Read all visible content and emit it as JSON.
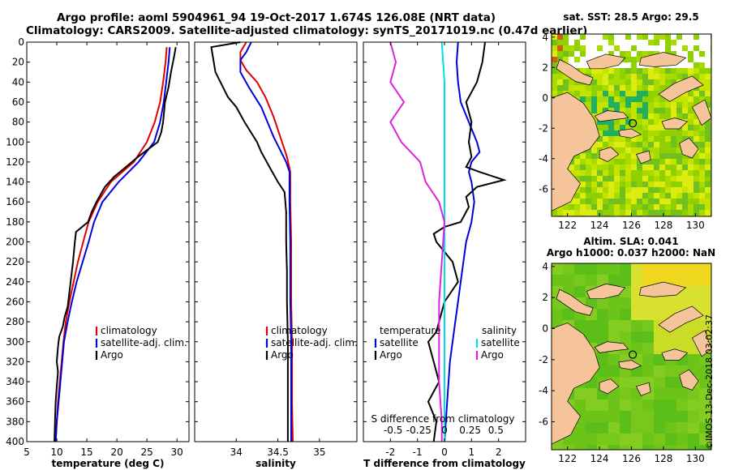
{
  "header": {
    "line1": "Argo profile: aoml 5904961_94 19-Oct-2017 1.674S 126.08E (NRT data)",
    "line2": "Climatology: CARS2009. Satellite-adjusted climatology: synTS_20171019.nc (0.47d earlier)"
  },
  "colors": {
    "climatology": "#e00000",
    "satellite": "#0000dd",
    "argo": "#000000",
    "satellite_salinity": "#00e0e8",
    "argo_salinity_diff": "#e020e0",
    "land": "#f5c49a"
  },
  "chart_data": [
    {
      "id": "temperature",
      "type": "line",
      "xlabel": "temperature (deg C)",
      "ylabel": "",
      "xlim": [
        5,
        32
      ],
      "ylim": [
        400,
        0
      ],
      "xticks": [
        5,
        10,
        15,
        20,
        25,
        30
      ],
      "yticks": [
        0,
        20,
        40,
        60,
        80,
        100,
        120,
        140,
        160,
        180,
        200,
        220,
        240,
        260,
        280,
        300,
        320,
        340,
        360,
        380,
        400
      ],
      "legend": [
        "climatology",
        "satellite-adj. clim.",
        "Argo"
      ],
      "series": [
        {
          "name": "climatology",
          "points": [
            [
              28.3,
              5
            ],
            [
              28.1,
              20
            ],
            [
              27.7,
              40
            ],
            [
              27.2,
              60
            ],
            [
              26.3,
              80
            ],
            [
              25,
              100
            ],
            [
              22.8,
              120
            ],
            [
              19,
              140
            ],
            [
              16.8,
              160
            ],
            [
              15.3,
              180
            ],
            [
              14.4,
              200
            ],
            [
              13.5,
              220
            ],
            [
              12.8,
              240
            ],
            [
              12.1,
              260
            ],
            [
              11.5,
              280
            ],
            [
              11.1,
              300
            ],
            [
              10.8,
              320
            ],
            [
              10.5,
              340
            ],
            [
              10.2,
              360
            ],
            [
              10.0,
              380
            ],
            [
              9.8,
              400
            ]
          ]
        },
        {
          "name": "satellite-adj. clim.",
          "points": [
            [
              28.8,
              5
            ],
            [
              28.6,
              20
            ],
            [
              28.2,
              40
            ],
            [
              27.8,
              60
            ],
            [
              27.2,
              80
            ],
            [
              26.2,
              100
            ],
            [
              23.6,
              120
            ],
            [
              20.3,
              140
            ],
            [
              17.6,
              160
            ],
            [
              16.2,
              180
            ],
            [
              15.3,
              200
            ],
            [
              14.3,
              220
            ],
            [
              13.3,
              240
            ],
            [
              12.5,
              260
            ],
            [
              11.8,
              280
            ],
            [
              11.2,
              300
            ],
            [
              10.9,
              320
            ],
            [
              10.6,
              340
            ],
            [
              10.3,
              360
            ],
            [
              10.0,
              380
            ],
            [
              9.8,
              400
            ]
          ]
        },
        {
          "name": "Argo",
          "points": [
            [
              29.8,
              5
            ],
            [
              29.5,
              15
            ],
            [
              29.0,
              30
            ],
            [
              28.6,
              45
            ],
            [
              28.0,
              60
            ],
            [
              27.7,
              80
            ],
            [
              27.4,
              90
            ],
            [
              26.8,
              100
            ],
            [
              23.5,
              115
            ],
            [
              21.5,
              125
            ],
            [
              19.5,
              135
            ],
            [
              18,
              145
            ],
            [
              16.6,
              160
            ],
            [
              15.8,
              170
            ],
            [
              15.2,
              180
            ],
            [
              13.2,
              190
            ],
            [
              13.0,
              200
            ],
            [
              12.7,
              220
            ],
            [
              12.3,
              240
            ],
            [
              12.0,
              255
            ],
            [
              11.8,
              265
            ],
            [
              11.3,
              275
            ],
            [
              11.0,
              285
            ],
            [
              10.4,
              295
            ],
            [
              10.2,
              305
            ],
            [
              10.0,
              320
            ],
            [
              10.2,
              330
            ],
            [
              10.0,
              345
            ],
            [
              9.8,
              360
            ],
            [
              9.7,
              380
            ],
            [
              9.6,
              400
            ]
          ]
        }
      ]
    },
    {
      "id": "salinity",
      "type": "line",
      "xlabel": "salinity",
      "xlim": [
        33.5,
        35.45
      ],
      "ylim": [
        400,
        0
      ],
      "xticks": [
        34,
        34.5,
        35
      ],
      "legend": [
        "climatology",
        "satellite-adj. clim.",
        "Argo"
      ],
      "series": [
        {
          "name": "climatology",
          "points": [
            [
              34.12,
              0
            ],
            [
              34.05,
              10
            ],
            [
              34.05,
              18
            ],
            [
              34.12,
              28
            ],
            [
              34.25,
              40
            ],
            [
              34.35,
              55
            ],
            [
              34.45,
              75
            ],
            [
              34.53,
              95
            ],
            [
              34.61,
              115
            ],
            [
              34.65,
              130
            ],
            [
              34.65,
              160
            ],
            [
              34.66,
              200
            ],
            [
              34.66,
              260
            ],
            [
              34.67,
              300
            ],
            [
              34.67,
              360
            ],
            [
              34.68,
              400
            ]
          ]
        },
        {
          "name": "satellite-adj. clim.",
          "points": [
            [
              34.18,
              0
            ],
            [
              34.12,
              10
            ],
            [
              34.05,
              18
            ],
            [
              34.05,
              30
            ],
            [
              34.15,
              45
            ],
            [
              34.3,
              65
            ],
            [
              34.45,
              95
            ],
            [
              34.6,
              120
            ],
            [
              34.64,
              130
            ],
            [
              34.64,
              160
            ],
            [
              34.65,
              200
            ],
            [
              34.65,
              260
            ],
            [
              34.66,
              300
            ],
            [
              34.66,
              360
            ],
            [
              34.66,
              400
            ]
          ]
        },
        {
          "name": "Argo",
          "points": [
            [
              34.05,
              0
            ],
            [
              33.7,
              5
            ],
            [
              33.75,
              30
            ],
            [
              33.9,
              55
            ],
            [
              34.0,
              65
            ],
            [
              34.1,
              80
            ],
            [
              34.25,
              100
            ],
            [
              34.3,
              110
            ],
            [
              34.4,
              125
            ],
            [
              34.5,
              140
            ],
            [
              34.58,
              150
            ],
            [
              34.6,
              170
            ],
            [
              34.6,
              200
            ],
            [
              34.61,
              230
            ],
            [
              34.61,
              260
            ],
            [
              34.62,
              300
            ],
            [
              34.62,
              340
            ],
            [
              34.62,
              400
            ]
          ]
        }
      ]
    },
    {
      "id": "difference",
      "type": "line",
      "xlabel": "T difference from climatology",
      "xlabel_top": "S difference from climatology",
      "xlim": [
        -3,
        3
      ],
      "ylim": [
        400,
        0
      ],
      "xticks": [
        -2,
        -1,
        0,
        1,
        2
      ],
      "s_ticks": [
        {
          "label": "-0.5",
          "t": -1.9
        },
        {
          "label": "-0.25",
          "t": -0.95
        },
        {
          "label": "0",
          "t": 0
        },
        {
          "label": "0.25",
          "t": 0.95
        },
        {
          "label": "0.5",
          "t": 1.9
        }
      ],
      "legend_left_title": "temperature",
      "legend_right_title": "salinity",
      "legend_left": [
        "satellite",
        "Argo"
      ],
      "legend_right": [
        "satellite",
        "Argo"
      ],
      "series": [
        {
          "name": "temperature satellite",
          "points": [
            [
              0.5,
              0
            ],
            [
              0.45,
              20
            ],
            [
              0.5,
              40
            ],
            [
              0.6,
              60
            ],
            [
              0.9,
              80
            ],
            [
              1.2,
              100
            ],
            [
              1.3,
              110
            ],
            [
              1.0,
              120
            ],
            [
              0.9,
              130
            ],
            [
              1.0,
              140
            ],
            [
              1.1,
              160
            ],
            [
              1.0,
              180
            ],
            [
              0.8,
              200
            ],
            [
              0.7,
              220
            ],
            [
              0.6,
              240
            ],
            [
              0.5,
              260
            ],
            [
              0.4,
              280
            ],
            [
              0.3,
              300
            ],
            [
              0.2,
              320
            ],
            [
              0.15,
              340
            ],
            [
              0.1,
              360
            ],
            [
              0.05,
              380
            ],
            [
              0.0,
              400
            ]
          ]
        },
        {
          "name": "temperature Argo",
          "points": [
            [
              1.5,
              0
            ],
            [
              1.4,
              20
            ],
            [
              1.2,
              40
            ],
            [
              0.8,
              60
            ],
            [
              1.0,
              80
            ],
            [
              0.9,
              100
            ],
            [
              1.0,
              115
            ],
            [
              0.8,
              125
            ],
            [
              1.3,
              130
            ],
            [
              2.2,
              138
            ],
            [
              1.2,
              145
            ],
            [
              0.8,
              155
            ],
            [
              0.9,
              165
            ],
            [
              0.6,
              180
            ],
            [
              0.0,
              185
            ],
            [
              -0.4,
              192
            ],
            [
              -0.3,
              200
            ],
            [
              0.0,
              210
            ],
            [
              0.3,
              220
            ],
            [
              0.5,
              240
            ],
            [
              0.0,
              260
            ],
            [
              -0.3,
              290
            ],
            [
              -0.6,
              300
            ],
            [
              -0.4,
              320
            ],
            [
              -0.2,
              340
            ],
            [
              -0.6,
              360
            ],
            [
              -0.3,
              380
            ],
            [
              -0.4,
              400
            ]
          ]
        },
        {
          "name": "salinity satellite",
          "points": [
            [
              -0.1,
              0
            ],
            [
              0.0,
              40
            ],
            [
              0.0,
              80
            ],
            [
              0.0,
              120
            ],
            [
              0.0,
              160
            ],
            [
              0.0,
              200
            ],
            [
              0.0,
              240
            ],
            [
              0.0,
              280
            ],
            [
              0.0,
              320
            ],
            [
              0.0,
              360
            ],
            [
              0.0,
              400
            ]
          ]
        },
        {
          "name": "salinity Argo",
          "points": [
            [
              -2.0,
              0
            ],
            [
              -1.8,
              20
            ],
            [
              -2.0,
              40
            ],
            [
              -1.5,
              60
            ],
            [
              -2.0,
              80
            ],
            [
              -1.6,
              100
            ],
            [
              -0.9,
              120
            ],
            [
              -0.7,
              140
            ],
            [
              -0.2,
              160
            ],
            [
              0.0,
              180
            ],
            [
              -0.1,
              220
            ],
            [
              -0.2,
              260
            ],
            [
              -0.2,
              300
            ],
            [
              -0.2,
              340
            ],
            [
              -0.1,
              380
            ],
            [
              -0.1,
              400
            ]
          ]
        }
      ]
    },
    {
      "id": "sst_map",
      "type": "heatmap",
      "title": "sat. SST: 28.5 Argo: 29.5",
      "xlim": [
        121,
        131
      ],
      "ylim": [
        -7.8,
        4.2
      ],
      "xticks": [
        122,
        124,
        126,
        128,
        130
      ],
      "yticks": [
        -6,
        -4,
        -2,
        0,
        2,
        4
      ],
      "argo_position": [
        126.08,
        -1.674
      ]
    },
    {
      "id": "sla_map",
      "type": "heatmap",
      "title_line1": "Altim. SLA: 0.041",
      "title_line2": "Argo h1000: 0.037 h2000: NaN",
      "xlim": [
        121,
        131
      ],
      "ylim": [
        -7.8,
        4.2
      ],
      "xticks": [
        122,
        124,
        126,
        128,
        130
      ],
      "yticks": [
        -6,
        -4,
        -2,
        0,
        2,
        4
      ],
      "argo_position": [
        126.08,
        -1.674
      ]
    }
  ],
  "footer": {
    "stamp": "©IMOS 13-Dec-2018 03:02:37"
  }
}
